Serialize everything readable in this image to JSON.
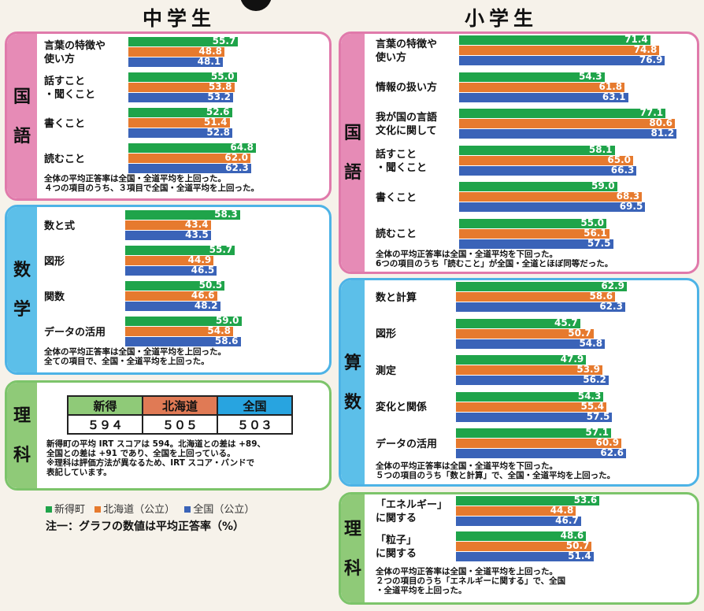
{
  "colors": {
    "town": "#1fa44a",
    "hokkaido": "#e67a2e",
    "national": "#3a63b8"
  },
  "titles": {
    "jhs": "中学生",
    "es": "小学生"
  },
  "chart_data": [
    {
      "type": "bar",
      "id": "jhs-kokugo",
      "subject": "国語",
      "categories": [
        "言葉の特徴や\n使い方",
        "話すこと\n・聞くこと",
        "書くこと",
        "読むこと"
      ],
      "series": [
        {
          "name": "新得町",
          "values": [
            55.7,
            55.0,
            52.6,
            64.8
          ]
        },
        {
          "name": "北海道（公立）",
          "values": [
            48.8,
            53.8,
            51.4,
            62.0
          ]
        },
        {
          "name": "全国（公立）",
          "values": [
            48.1,
            53.2,
            52.8,
            62.3
          ]
        }
      ],
      "note": "全体の平均正答率は全国・全道平均を上回った。\n４つの項目のうち、３項目で全国・全道平均を上回った。"
    },
    {
      "type": "bar",
      "id": "jhs-math",
      "subject": "数学",
      "categories": [
        "数と式",
        "図形",
        "関数",
        "データの活用"
      ],
      "series": [
        {
          "name": "新得町",
          "values": [
            58.3,
            55.7,
            50.5,
            59.0
          ]
        },
        {
          "name": "北海道（公立）",
          "values": [
            43.4,
            44.9,
            46.6,
            54.8
          ]
        },
        {
          "name": "全国（公立）",
          "values": [
            43.5,
            46.5,
            48.2,
            58.6
          ]
        }
      ],
      "note": "全体の平均正答率は全国・全道平均を上回った。\n全ての項目で、全国・全道平均を上回った。"
    },
    {
      "type": "bar",
      "id": "es-kokugo",
      "subject": "国語",
      "categories": [
        "言葉の特徴や\n使い方",
        "情報の扱い方",
        "我が国の言語\n文化に関して",
        "話すこと\n・聞くこと",
        "書くこと",
        "読むこと"
      ],
      "series": [
        {
          "name": "新得町",
          "values": [
            71.4,
            54.3,
            77.1,
            58.1,
            59.0,
            55.0
          ]
        },
        {
          "name": "北海道（公立）",
          "values": [
            74.8,
            61.8,
            80.6,
            65.0,
            68.3,
            56.1
          ]
        },
        {
          "name": "全国（公立）",
          "values": [
            76.9,
            63.1,
            81.2,
            66.3,
            69.5,
            57.5
          ]
        }
      ],
      "note": "全体の平均正答率は全国・全道平均を下回った。\n6つの項目のうち「読むこと」が全国・全道とほぼ同等だった。"
    },
    {
      "type": "bar",
      "id": "es-sansu",
      "subject": "算数",
      "categories": [
        "数と計算",
        "図形",
        "測定",
        "変化と関係",
        "データの活用"
      ],
      "series": [
        {
          "name": "新得町",
          "values": [
            62.9,
            45.7,
            47.9,
            54.3,
            57.1
          ]
        },
        {
          "name": "北海道（公立）",
          "values": [
            58.6,
            50.7,
            53.9,
            55.4,
            60.9
          ]
        },
        {
          "name": "全国（公立）",
          "values": [
            62.3,
            54.8,
            56.2,
            57.5,
            62.6
          ]
        }
      ],
      "note": "全体の平均正答率は全国・全道平均を下回った。\n５つの項目のうち「数と計算」で、全国・全道平均を上回った。"
    },
    {
      "type": "bar",
      "id": "es-rika",
      "subject": "理科",
      "categories": [
        "「エネルギー」\nに関する",
        "「粒子」\nに関する"
      ],
      "series": [
        {
          "name": "新得町",
          "values": [
            53.6,
            48.6
          ]
        },
        {
          "name": "北海道（公立）",
          "values": [
            44.8,
            50.7
          ]
        },
        {
          "name": "全国（公立）",
          "values": [
            46.7,
            51.4
          ]
        }
      ],
      "note": "全体の平均正答率は全国・全道平均を上回った。\n２つの項目のうち「エネルギーに関する」で、全国\n・全道平均を上回った。"
    }
  ],
  "jhs_rika": {
    "subject": "理科",
    "table": {
      "headers": [
        "新得",
        "北海道",
        "全国"
      ],
      "values": [
        "５９４",
        "５０５",
        "５０３"
      ]
    },
    "note": "新得町の平均 IRT スコアは 594。北海道との差は +89、\n全国との差は +91 であり、全国を上回っている。\n※理科は評価方法が異なるため、IRT スコア・バンドで\n表記しています。"
  },
  "legend": [
    "新得町",
    "北海道（公立）",
    "全国（公立）"
  ],
  "footnote": "注一：グラフの数値は平均正答率（%）"
}
